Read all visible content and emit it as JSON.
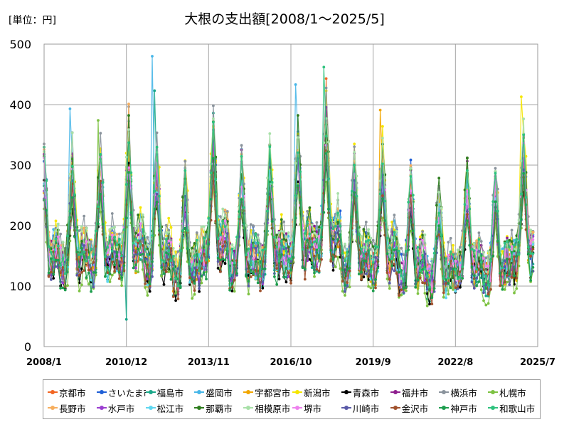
{
  "header": {
    "unit": "[単位：円]",
    "title": "大根の支出額[2008/1～2025/5]"
  },
  "chart_data": {
    "type": "line",
    "title": "大根の支出額[2008/1～2025/5]",
    "unit_label": "[単位：円]",
    "x_range": [
      "2008/1",
      "2025/7"
    ],
    "x_ticks": [
      "2008/1",
      "2010/12",
      "2013/11",
      "2016/10",
      "2019/9",
      "2022/8",
      "2025/7"
    ],
    "ylim": [
      0,
      500
    ],
    "y_ticks": [
      0,
      100,
      200,
      300,
      400,
      500
    ],
    "grid": true,
    "legend_position": "bottom",
    "series": [
      {
        "name": "京都市",
        "color": "#f26522"
      },
      {
        "name": "さいたま市",
        "color": "#1f5fd6"
      },
      {
        "name": "福島市",
        "color": "#1aa88a"
      },
      {
        "name": "盛岡市",
        "color": "#47b6e8"
      },
      {
        "name": "宇都宮市",
        "color": "#f2a600"
      },
      {
        "name": "新潟市",
        "color": "#f5e600"
      },
      {
        "name": "青森市",
        "color": "#000000"
      },
      {
        "name": "福井市",
        "color": "#8e1f8e"
      },
      {
        "name": "横浜市",
        "color": "#8a939c"
      },
      {
        "name": "札幌市",
        "color": "#7dc242"
      },
      {
        "name": "長野市",
        "color": "#f6ae5e"
      },
      {
        "name": "水戸市",
        "color": "#9b3fd0"
      },
      {
        "name": "松江市",
        "color": "#5fd7f0"
      },
      {
        "name": "那覇市",
        "color": "#2e7d1e"
      },
      {
        "name": "相模原市",
        "color": "#a8e0a8"
      },
      {
        "name": "堺市",
        "color": "#ee82ee"
      },
      {
        "name": "川崎市",
        "color": "#5a5aa8"
      },
      {
        "name": "金沢市",
        "color": "#a0522d"
      },
      {
        "name": "神戸市",
        "color": "#1e9e4e"
      },
      {
        "name": "和歌山市",
        "color": "#2ec27e"
      }
    ],
    "seasonal_peaks": [
      {
        "date": "2009/1",
        "value": 300
      },
      {
        "date": "2010/1",
        "value": 300
      },
      {
        "date": "2011/1",
        "value": 330
      },
      {
        "date": "2012/1",
        "value": 300
      },
      {
        "date": "2013/1",
        "value": 260
      },
      {
        "date": "2014/1",
        "value": 340
      },
      {
        "date": "2015/1",
        "value": 290
      },
      {
        "date": "2016/1",
        "value": 300
      },
      {
        "date": "2017/1",
        "value": 330
      },
      {
        "date": "2018/1",
        "value": 360
      },
      {
        "date": "2019/1",
        "value": 290
      },
      {
        "date": "2020/1",
        "value": 300
      },
      {
        "date": "2021/1",
        "value": 270
      },
      {
        "date": "2022/1",
        "value": 240
      },
      {
        "date": "2023/1",
        "value": 270
      },
      {
        "date": "2024/1",
        "value": 260
      },
      {
        "date": "2025/1",
        "value": 320
      }
    ],
    "highlights": [
      {
        "series": "盛岡市",
        "date": "2011/11",
        "value": 480
      },
      {
        "series": "和歌山市",
        "date": "2017/12",
        "value": 462
      },
      {
        "series": "京都市",
        "date": "2018/1",
        "value": 443
      },
      {
        "series": "盛岡市",
        "date": "2016/12",
        "value": 433
      },
      {
        "series": "新潟市",
        "date": "2024/12",
        "value": 413
      },
      {
        "series": "長野市",
        "date": "2011/1",
        "value": 401
      },
      {
        "series": "宇都宮市",
        "date": "2019/12",
        "value": 391
      },
      {
        "series": "盛岡市",
        "date": "2008/12",
        "value": 393
      },
      {
        "series": "福島市",
        "date": "2014/1",
        "value": 386
      },
      {
        "series": "福島市",
        "date": "2011/12",
        "value": 423
      },
      {
        "series": "札幌市",
        "date": "2009/12",
        "value": 374
      },
      {
        "series": "福島市",
        "date": "2010/12",
        "value": 20
      }
    ]
  }
}
